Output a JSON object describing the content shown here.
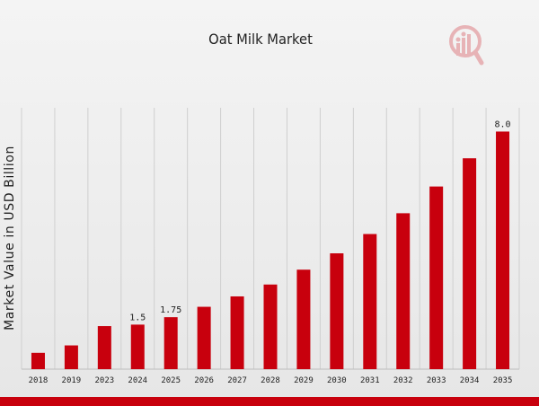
{
  "chart_data": {
    "type": "bar",
    "title": "Oat Milk Market",
    "ylabel": "Market Value in USD Billion",
    "xlabel": "",
    "categories": [
      "2018",
      "2019",
      "2023",
      "2024",
      "2025",
      "2026",
      "2027",
      "2028",
      "2029",
      "2030",
      "2031",
      "2032",
      "2033",
      "2034",
      "2035"
    ],
    "values": [
      0.55,
      0.8,
      1.45,
      1.5,
      1.75,
      2.1,
      2.45,
      2.85,
      3.35,
      3.9,
      4.55,
      5.25,
      6.15,
      7.1,
      8.0
    ],
    "data_labels": [
      {
        "index": 3,
        "text": "1.5"
      },
      {
        "index": 4,
        "text": "1.75"
      },
      {
        "index": 14,
        "text": "8.0"
      }
    ],
    "ylim": [
      0,
      8.8
    ],
    "grid": "vertical",
    "legend": "none",
    "colors": {
      "bar": "#c8000d",
      "grid": "#cfcfcf",
      "band": "#c8000d"
    }
  }
}
